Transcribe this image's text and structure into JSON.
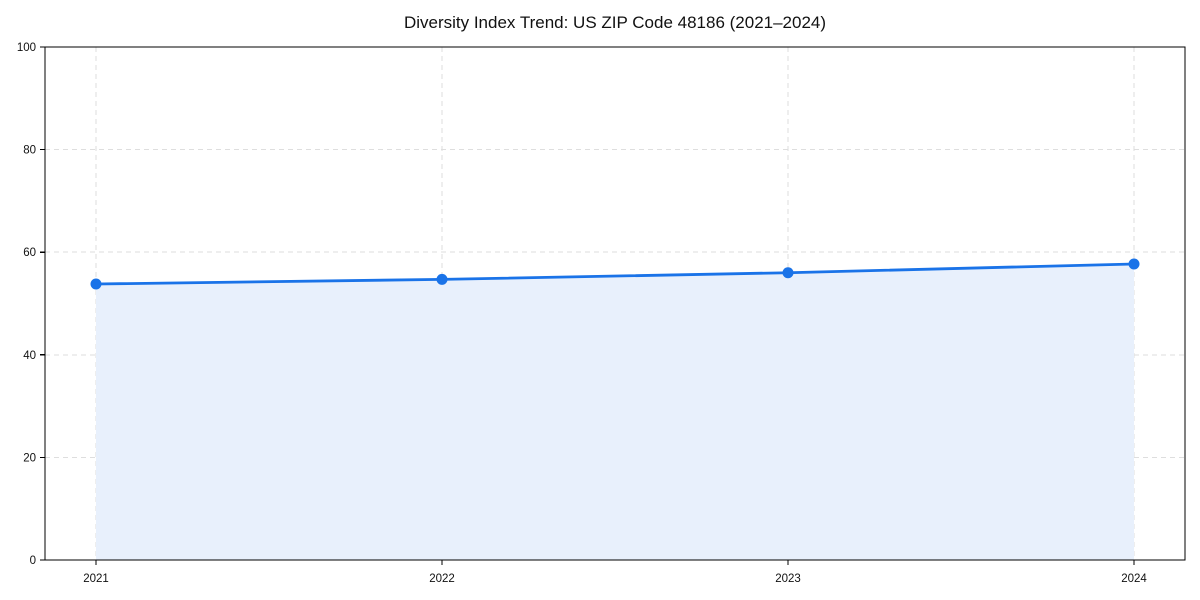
{
  "chart_data": {
    "type": "area",
    "title": "Diversity Index Trend: US ZIP Code 48186 (2021–2024)",
    "categories": [
      "2021",
      "2022",
      "2023",
      "2024"
    ],
    "values": [
      53.8,
      54.7,
      56.0,
      57.7
    ],
    "xlabel": "",
    "ylabel": "",
    "ylim": [
      0,
      100
    ],
    "yticks": [
      0,
      20,
      40,
      60,
      80,
      100
    ],
    "grid": "dashed-both-axes",
    "legend": "none",
    "marker": "circle",
    "colors": {
      "line": "#1a73e8",
      "marker": "#1a73e8",
      "fill": "#e8f0fc",
      "grid": "#dedede",
      "axis": "#000000",
      "tick_label": "#111111",
      "background": "#ffffff"
    }
  }
}
